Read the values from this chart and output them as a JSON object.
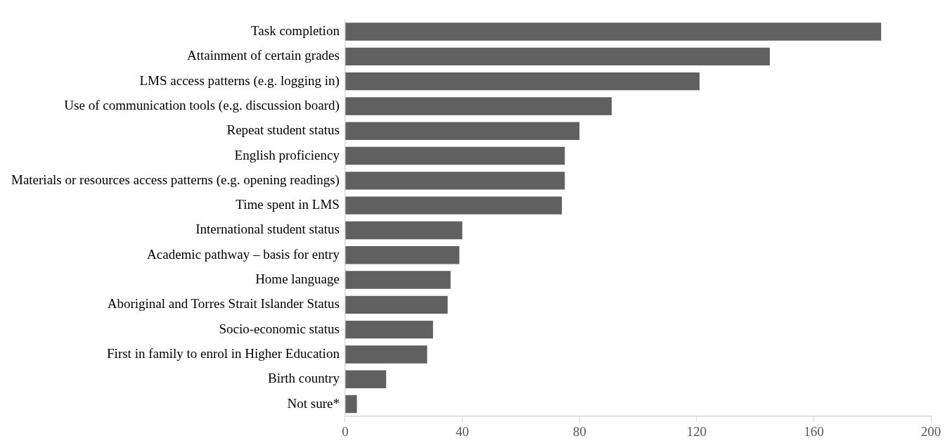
{
  "chart_data": {
    "type": "bar",
    "orientation": "horizontal",
    "categories": [
      "Task completion",
      "Attainment of certain grades",
      "LMS access patterns (e.g. logging in)",
      "Use of communication tools (e.g. discussion board)",
      "Repeat student status",
      "English proficiency",
      "Materials or resources access patterns (e.g. opening readings)",
      "Time spent in LMS",
      "International student status",
      "Academic pathway – basis for entry",
      "Home language",
      "Aboriginal and Torres Strait Islander Status",
      "Socio-economic status",
      "First in family to enrol in Higher Education",
      "Birth country",
      "Not sure*"
    ],
    "values": [
      183,
      145,
      121,
      91,
      80,
      75,
      75,
      74,
      40,
      39,
      36,
      35,
      30,
      28,
      14,
      4
    ],
    "color": "#606060",
    "xlim": [
      0,
      200
    ],
    "xticks": [
      0,
      40,
      80,
      120,
      160,
      200
    ],
    "grid": false,
    "legend": false
  }
}
